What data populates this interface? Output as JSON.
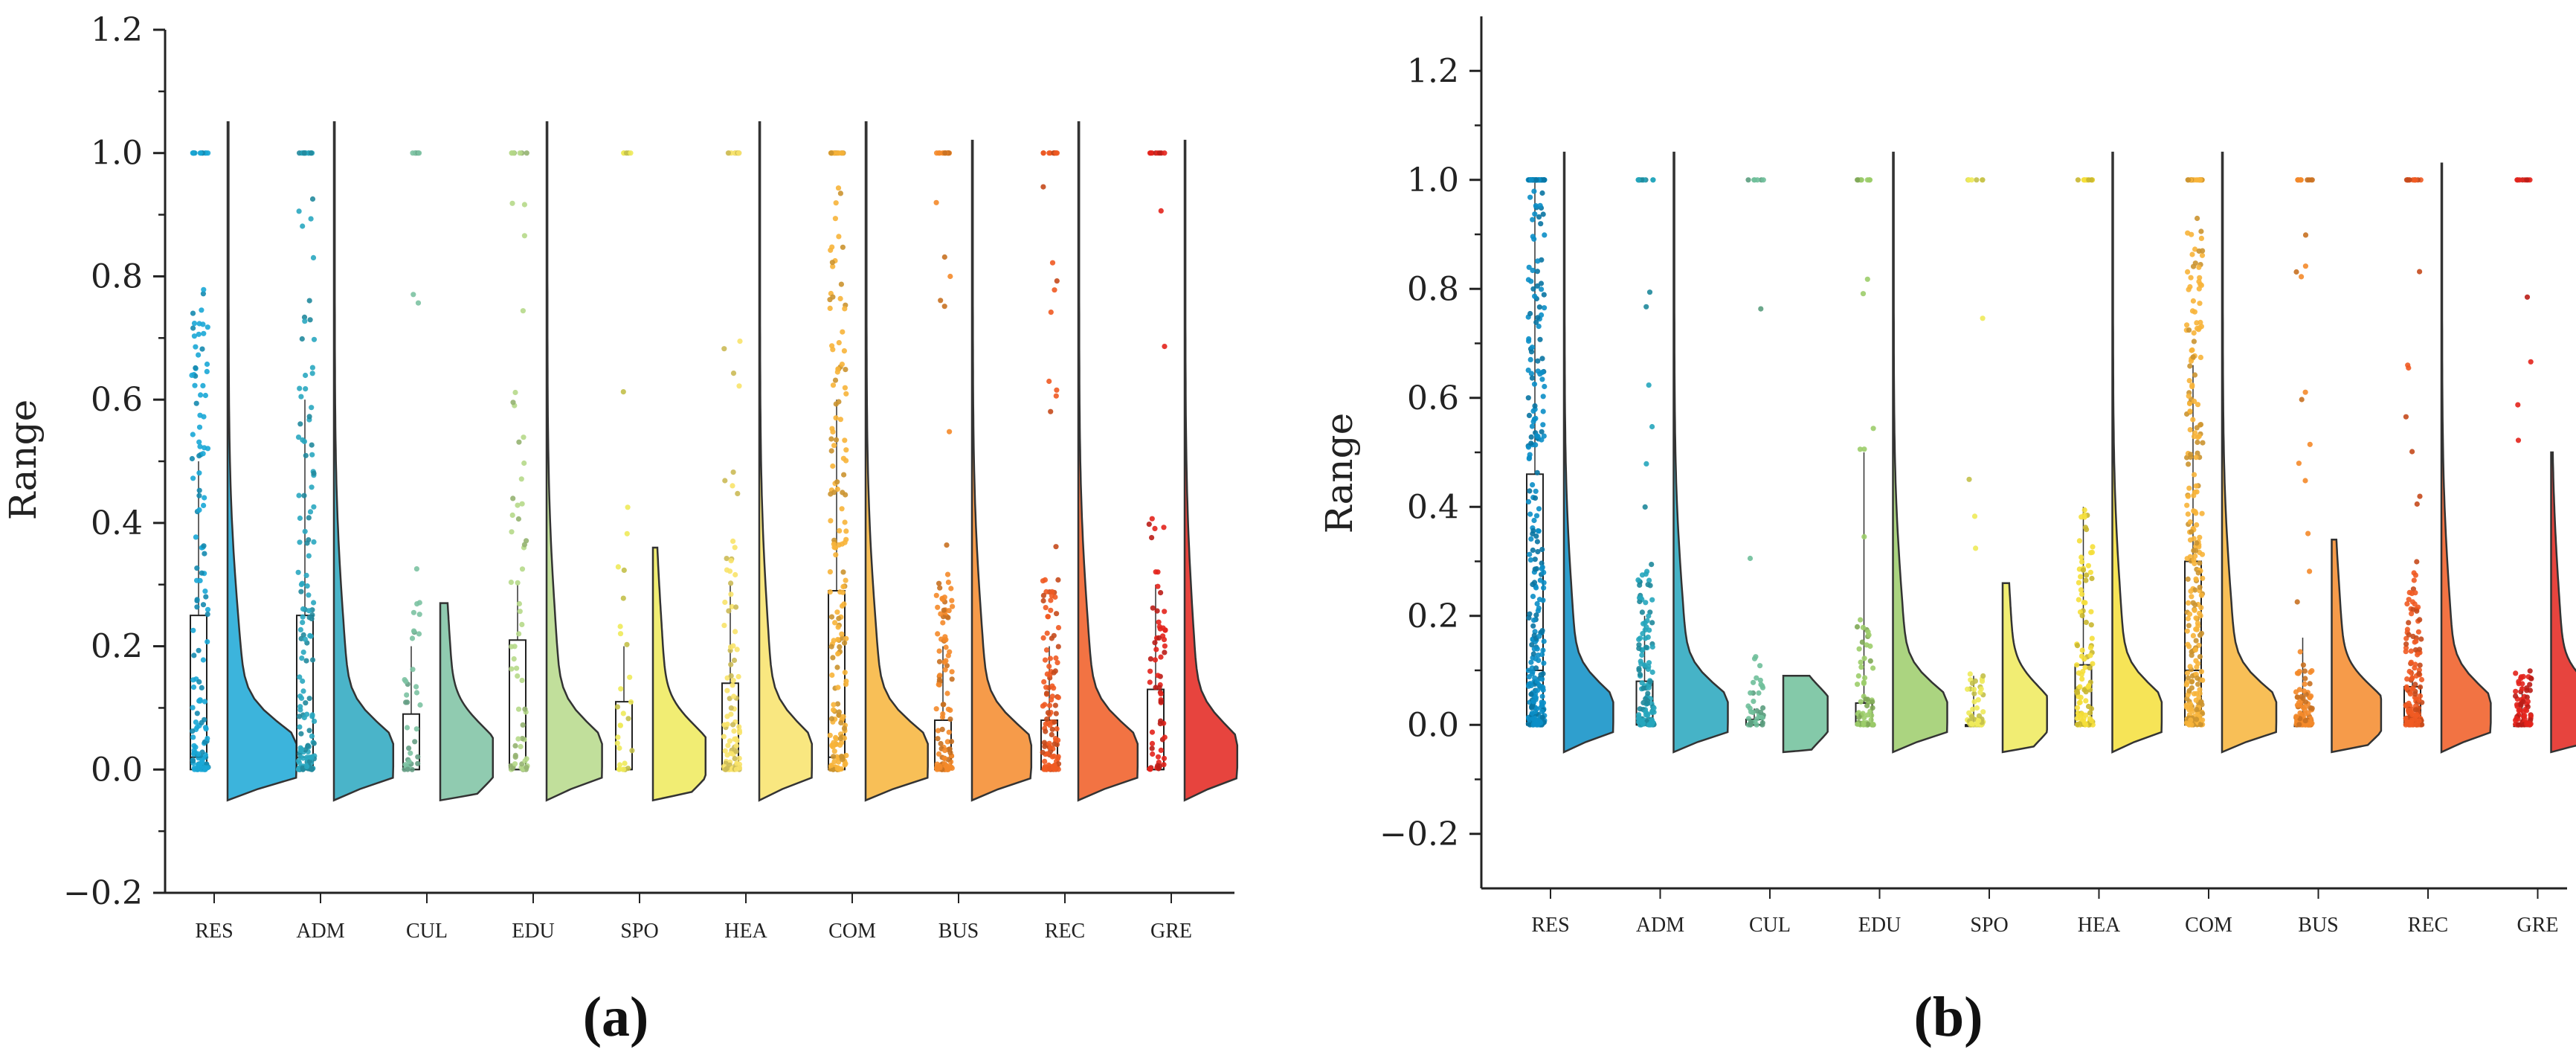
{
  "chart_data": [
    {
      "panel": "(a)",
      "type": "raincloud",
      "ylabel": "Range",
      "ylim": [
        -0.2,
        1.2
      ],
      "yticks": [
        "−0.2",
        "0.0",
        "0.2",
        "0.4",
        "0.6",
        "0.8",
        "1.0",
        "1.2"
      ],
      "categories": [
        "RES",
        "ADM",
        "CUL",
        "EDU",
        "SPO",
        "HEA",
        "COM",
        "BUS",
        "REC",
        "GRE"
      ],
      "colors": [
        "#1aa7d6",
        "#2aa7c0",
        "#7cc2a2",
        "#b6d98a",
        "#eeea5a",
        "#f8e36a",
        "#f7b43a",
        "#f48a2a",
        "#f05a22",
        "#e3231c"
      ],
      "box": [
        {
          "q1": 0.0,
          "median": 0.02,
          "q3": 0.25,
          "max": 0.5
        },
        {
          "q1": 0.0,
          "median": 0.02,
          "q3": 0.25,
          "max": 0.6
        },
        {
          "q1": 0.0,
          "median": 0.0,
          "q3": 0.09,
          "max": 0.2
        },
        {
          "q1": 0.0,
          "median": 0.0,
          "q3": 0.21,
          "max": 0.3
        },
        {
          "q1": 0.0,
          "median": 0.0,
          "q3": 0.11,
          "max": 0.2
        },
        {
          "q1": 0.0,
          "median": 0.0,
          "q3": 0.14,
          "max": 0.3
        },
        {
          "q1": 0.0,
          "median": 0.02,
          "q3": 0.29,
          "max": 0.6
        },
        {
          "q1": 0.0,
          "median": 0.0,
          "q3": 0.08,
          "max": 0.2
        },
        {
          "q1": 0.0,
          "median": 0.0,
          "q3": 0.08,
          "max": 0.2
        },
        {
          "q1": 0.0,
          "median": 0.0,
          "q3": 0.13,
          "max": 0.3
        }
      ],
      "density_top": [
        1.05,
        1.05,
        0.27,
        1.05,
        0.36,
        1.05,
        1.05,
        1.02,
        1.05,
        1.02
      ],
      "density_peak_width": [
        0.72,
        0.62,
        0.55,
        0.58,
        0.55,
        0.55,
        0.65,
        0.62,
        0.62,
        0.55
      ],
      "points_per_group": [
        150,
        160,
        45,
        70,
        35,
        110,
        190,
        130,
        140,
        75
      ],
      "y_top_cluster": [
        1.0,
        1.0,
        1.0,
        1.0,
        1.0,
        1.0,
        1.0,
        1.0,
        1.0,
        1.0
      ]
    },
    {
      "panel": "(b)",
      "type": "raincloud",
      "ylabel": "Range",
      "ylim": [
        -0.3,
        1.3
      ],
      "yticks": [
        "−0.2",
        "0.0",
        "0.2",
        "0.4",
        "0.6",
        "0.8",
        "1.0",
        "1.2"
      ],
      "categories": [
        "RES",
        "ADM",
        "CUL",
        "EDU",
        "SPO",
        "HEA",
        "COM",
        "BUS",
        "REC",
        "GRE"
      ],
      "colors": [
        "#0b8ec6",
        "#26a6bd",
        "#6fbf9a",
        "#9ccd6a",
        "#eeea5a",
        "#f5df3a",
        "#f7b43a",
        "#f48a2a",
        "#f05a22",
        "#e3231c"
      ],
      "box": [
        {
          "q1": 0.0,
          "median": 0.1,
          "q3": 0.46,
          "max": 1.0
        },
        {
          "q1": 0.0,
          "median": 0.0,
          "q3": 0.08,
          "max": 0.2
        },
        {
          "q1": 0.0,
          "median": 0.0,
          "q3": 0.01,
          "max": 0.03
        },
        {
          "q1": 0.0,
          "median": 0.0,
          "q3": 0.04,
          "max": 0.5
        },
        {
          "q1": 0.0,
          "median": 0.0,
          "q3": 0.0,
          "max": 0.09
        },
        {
          "q1": 0.0,
          "median": 0.0,
          "q3": 0.11,
          "max": 0.4
        },
        {
          "q1": 0.0,
          "median": 0.1,
          "q3": 0.3,
          "max": 0.66
        },
        {
          "q1": 0.0,
          "median": 0.0,
          "q3": 0.0,
          "max": 0.16
        },
        {
          "q1": 0.0,
          "median": 0.0,
          "q3": 0.07,
          "max": 0.1
        },
        {
          "q1": 0.0,
          "median": 0.0,
          "q3": 0.0,
          "max": 0.07
        }
      ],
      "density_top": [
        1.05,
        1.05,
        0.09,
        1.05,
        0.26,
        1.05,
        1.05,
        0.34,
        1.03,
        0.5
      ],
      "density_peak_width": [
        0.5,
        0.55,
        0.45,
        0.55,
        0.45,
        0.5,
        0.55,
        0.5,
        0.5,
        0.5
      ],
      "points_per_group": [
        320,
        140,
        45,
        75,
        60,
        120,
        290,
        120,
        170,
        85
      ],
      "y_top_cluster": [
        1.0,
        1.0,
        1.0,
        1.0,
        1.0,
        1.0,
        1.0,
        1.0,
        1.0,
        1.0
      ]
    }
  ]
}
